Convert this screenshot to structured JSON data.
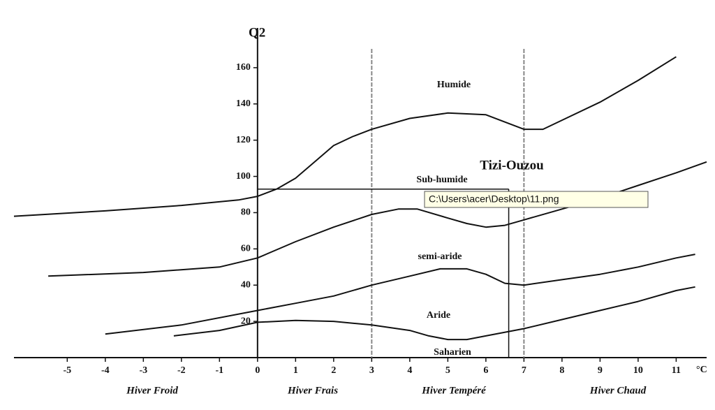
{
  "chart_data": {
    "type": "line",
    "y_label": "Q2",
    "x_label": "°C",
    "xlim": [
      -6.4,
      11.8
    ],
    "ylim": [
      0,
      180
    ],
    "xticks": [
      -5,
      -4,
      -3,
      -2,
      -1,
      0,
      1,
      2,
      3,
      4,
      5,
      6,
      7,
      8,
      9,
      10,
      11
    ],
    "yticks": [
      20,
      40,
      60,
      80,
      100,
      120,
      140,
      160
    ],
    "vlines": [
      3,
      7
    ],
    "zones": [
      "Humide",
      "Sub-humide",
      "semi-aride",
      "Aride",
      "Saharien"
    ],
    "x_groups": [
      "Hiver Froid",
      "Hiver Frais",
      "Hiver Tempéré",
      "Hiver Chaud"
    ],
    "annotations": [
      {
        "text": "Tizi-Ouzou",
        "x": 6.6,
        "y": 93
      }
    ],
    "tooltip": "C:\\Users\\acer\\Desktop\\11.png",
    "series": [
      {
        "color": "#111111",
        "x": [
          -6.4,
          -4,
          -2,
          -0.5,
          0,
          0.5,
          1,
          1.5,
          2,
          2.5,
          3,
          4,
          5,
          6,
          6.5,
          7,
          7.5,
          8,
          9,
          10,
          11
        ],
        "values": [
          78,
          81,
          84,
          87,
          89,
          93,
          99,
          108,
          117,
          122,
          126,
          132,
          135,
          134,
          130,
          126,
          126,
          131,
          141,
          153,
          166
        ]
      },
      {
        "color": "#111111",
        "x": [
          -5.5,
          -3,
          -1,
          0,
          1,
          2,
          3,
          3.7,
          4.2,
          5,
          5.5,
          6,
          6.5,
          7,
          8,
          9,
          10,
          11,
          11.8
        ],
        "values": [
          45,
          47,
          50,
          55,
          64,
          72,
          79,
          82,
          82,
          77,
          74,
          72,
          73,
          76,
          82,
          88,
          95,
          102,
          108
        ]
      },
      {
        "color": "#111111",
        "x": [
          -4,
          -2,
          0,
          1,
          2,
          3,
          4,
          4.8,
          5.5,
          6,
          6.5,
          7,
          8,
          9,
          10,
          11,
          11.5
        ],
        "values": [
          13,
          18,
          26,
          30,
          34,
          40,
          45,
          49,
          49,
          46,
          41,
          40,
          43,
          46,
          50,
          55,
          57
        ]
      },
      {
        "color": "#111111",
        "x": [
          -2.2,
          -1,
          0,
          1,
          2,
          3,
          4,
          4.5,
          5,
          5.5,
          6,
          7,
          8,
          9,
          10,
          11,
          11.5
        ],
        "values": [
          12,
          15,
          19.5,
          20.5,
          20,
          18,
          15,
          12,
          10,
          10,
          12,
          16,
          21,
          26,
          31,
          37,
          39
        ]
      }
    ]
  }
}
